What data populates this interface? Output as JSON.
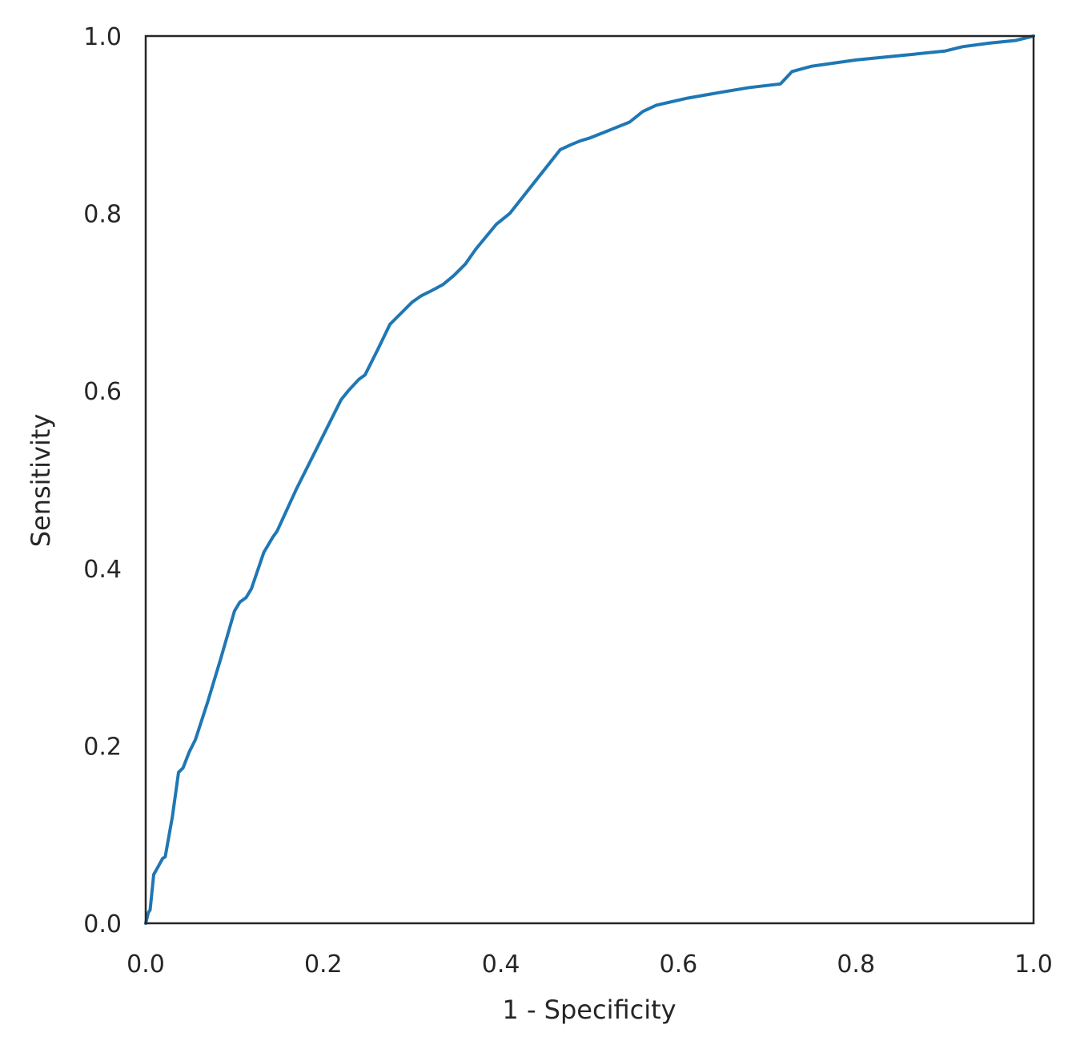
{
  "chart_data": {
    "type": "line",
    "title": "",
    "xlabel": "1 - Specificity",
    "ylabel": "Sensitivity",
    "xlim": [
      0.0,
      1.0
    ],
    "ylim": [
      0.0,
      1.0
    ],
    "grid": false,
    "legend": "none",
    "x_ticks": [
      "0.0",
      "0.2",
      "0.4",
      "0.6",
      "0.8",
      "1.0"
    ],
    "y_ticks": [
      "0.0",
      "0.2",
      "0.4",
      "0.6",
      "0.8",
      "1.0"
    ],
    "series": [
      {
        "color": "#1f77b4",
        "points": [
          [
            0.0,
            0.0
          ],
          [
            0.003,
            0.012
          ],
          [
            0.005,
            0.015
          ],
          [
            0.009,
            0.055
          ],
          [
            0.013,
            0.062
          ],
          [
            0.019,
            0.073
          ],
          [
            0.022,
            0.075
          ],
          [
            0.03,
            0.12
          ],
          [
            0.037,
            0.17
          ],
          [
            0.042,
            0.175
          ],
          [
            0.049,
            0.193
          ],
          [
            0.056,
            0.207
          ],
          [
            0.07,
            0.25
          ],
          [
            0.085,
            0.3
          ],
          [
            0.1,
            0.352
          ],
          [
            0.106,
            0.362
          ],
          [
            0.113,
            0.367
          ],
          [
            0.119,
            0.377
          ],
          [
            0.133,
            0.418
          ],
          [
            0.143,
            0.435
          ],
          [
            0.148,
            0.442
          ],
          [
            0.17,
            0.49
          ],
          [
            0.195,
            0.54
          ],
          [
            0.22,
            0.59
          ],
          [
            0.228,
            0.6
          ],
          [
            0.24,
            0.613
          ],
          [
            0.247,
            0.618
          ],
          [
            0.262,
            0.648
          ],
          [
            0.275,
            0.675
          ],
          [
            0.29,
            0.69
          ],
          [
            0.3,
            0.7
          ],
          [
            0.31,
            0.707
          ],
          [
            0.322,
            0.713
          ],
          [
            0.335,
            0.72
          ],
          [
            0.347,
            0.73
          ],
          [
            0.36,
            0.743
          ],
          [
            0.372,
            0.76
          ],
          [
            0.395,
            0.788
          ],
          [
            0.41,
            0.8
          ],
          [
            0.44,
            0.838
          ],
          [
            0.467,
            0.872
          ],
          [
            0.48,
            0.878
          ],
          [
            0.49,
            0.882
          ],
          [
            0.5,
            0.885
          ],
          [
            0.52,
            0.893
          ],
          [
            0.545,
            0.903
          ],
          [
            0.56,
            0.915
          ],
          [
            0.575,
            0.922
          ],
          [
            0.61,
            0.93
          ],
          [
            0.65,
            0.937
          ],
          [
            0.68,
            0.942
          ],
          [
            0.715,
            0.946
          ],
          [
            0.728,
            0.96
          ],
          [
            0.75,
            0.966
          ],
          [
            0.8,
            0.973
          ],
          [
            0.85,
            0.978
          ],
          [
            0.9,
            0.983
          ],
          [
            0.92,
            0.988
          ],
          [
            0.95,
            0.992
          ],
          [
            0.98,
            0.995
          ],
          [
            1.0,
            1.0
          ]
        ]
      }
    ]
  }
}
